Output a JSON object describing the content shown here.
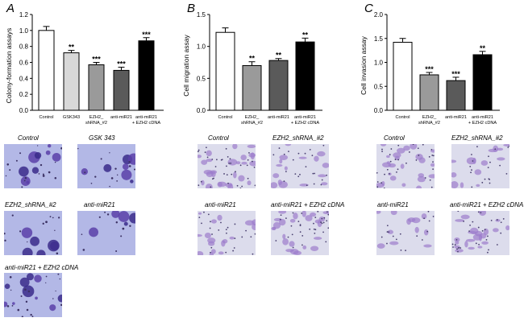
{
  "panels": {
    "A": {
      "letter": "A",
      "images": [
        {
          "label": "Control"
        },
        {
          "label": "GSK 343"
        },
        {
          "label": "EZH2_shRNA_#2"
        },
        {
          "label": "anti-miR21"
        },
        {
          "label": "anti-miR21 + EZH2 cDNA"
        }
      ]
    },
    "B": {
      "letter": "B",
      "images": [
        {
          "label": "Control"
        },
        {
          "label": "EZH2_shRNA_#2"
        },
        {
          "label": "anti-miR21"
        },
        {
          "label": "anti-miR21 + EZH2 cDNA"
        }
      ]
    },
    "C": {
      "letter": "C",
      "images": [
        {
          "label": "Control"
        },
        {
          "label": "EZH2_shRNA_#2"
        },
        {
          "label": "anti-miR21"
        },
        {
          "label": "anti-miR21 + EZH2 cDNA"
        }
      ]
    }
  },
  "chart_data": [
    {
      "type": "bar",
      "ylabel": "Colony-formation assays",
      "categories": [
        [
          "Control"
        ],
        [
          "GSK343"
        ],
        [
          "EZH2_",
          "shRNA_#2"
        ],
        [
          "anti-miR21"
        ],
        [
          "anti-miR21",
          "+ EZH2 cDNA"
        ]
      ],
      "values": [
        1.0,
        0.72,
        0.57,
        0.5,
        0.87
      ],
      "errors": [
        0.05,
        0.03,
        0.03,
        0.04,
        0.04
      ],
      "significance": [
        "",
        "**",
        "***",
        "***",
        "***"
      ],
      "bar_colors": [
        "#ffffff",
        "#d8d8d8",
        "#9a9a9a",
        "#5a5a5a",
        "#000000"
      ],
      "ylim": [
        0,
        1.2
      ],
      "yticks": [
        "0.0",
        "0.2",
        "0.4",
        "0.6",
        "0.8",
        "1.0",
        "1.2"
      ],
      "ytick_values": [
        0,
        0.2,
        0.4,
        0.6,
        0.8,
        1.0,
        1.2
      ]
    },
    {
      "type": "bar",
      "ylabel": "Cell migration assay",
      "categories": [
        [
          "Control"
        ],
        [
          "EZH2_",
          "shRNA_#2"
        ],
        [
          "anti-miR21"
        ],
        [
          "anti-miR21",
          "+ EZH2 cDNA"
        ]
      ],
      "values": [
        1.22,
        0.7,
        0.78,
        1.07
      ],
      "errors": [
        0.07,
        0.06,
        0.03,
        0.06
      ],
      "significance": [
        "",
        "**",
        "**",
        "**"
      ],
      "bar_colors": [
        "#ffffff",
        "#9a9a9a",
        "#5a5a5a",
        "#000000"
      ],
      "ylim": [
        0,
        1.5
      ],
      "yticks": [
        "0.0",
        "0.5",
        "1.0",
        "1.5"
      ],
      "ytick_values": [
        0,
        0.5,
        1.0,
        1.5
      ]
    },
    {
      "type": "bar",
      "ylabel": "Cell invasion assay",
      "categories": [
        [
          "Control"
        ],
        [
          "EZH2_",
          "shRNA_#2"
        ],
        [
          "anti-miR21"
        ],
        [
          "anti-miR21",
          "+ EZH2 cDNA"
        ]
      ],
      "values": [
        1.42,
        0.74,
        0.62,
        1.16
      ],
      "errors": [
        0.08,
        0.05,
        0.07,
        0.07
      ],
      "significance": [
        "",
        "***",
        "***",
        "**"
      ],
      "bar_colors": [
        "#ffffff",
        "#9a9a9a",
        "#5a5a5a",
        "#000000"
      ],
      "ylim": [
        0,
        2.0
      ],
      "yticks": [
        "0.0",
        "0.5",
        "1.0",
        "1.5",
        "2.0"
      ],
      "ytick_values": [
        0,
        0.5,
        1.0,
        1.5,
        2.0
      ]
    }
  ]
}
